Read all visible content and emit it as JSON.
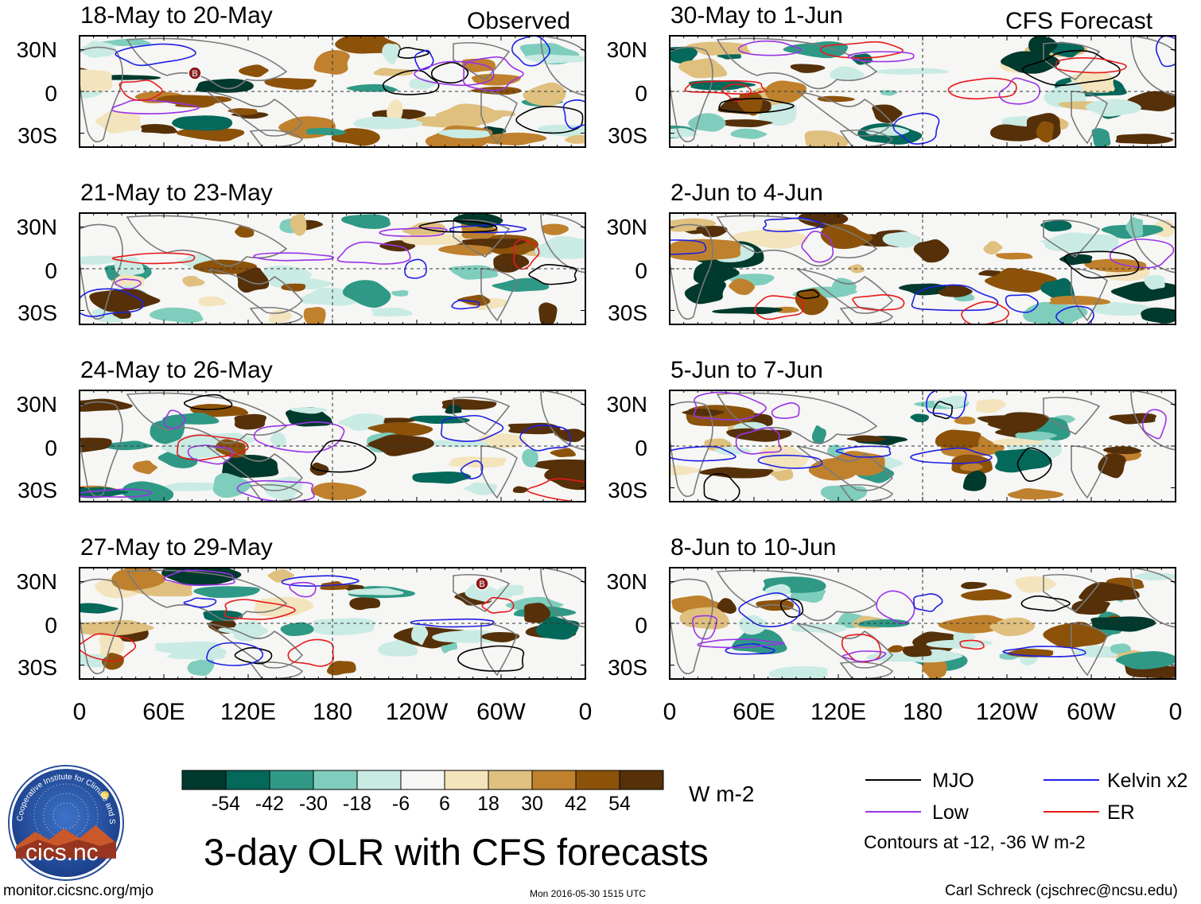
{
  "chart_data": {
    "type": "heatmap",
    "title": "3-day OLR with CFS forecasts",
    "units": "W m-2",
    "column_labels": [
      "Observed",
      "CFS Forecast"
    ],
    "panels": {
      "observed": [
        {
          "title": "18-May to 20-May"
        },
        {
          "title": "21-May to 23-May"
        },
        {
          "title": "24-May to 26-May"
        },
        {
          "title": "27-May to 29-May"
        }
      ],
      "forecast": [
        {
          "title": "30-May to 1-Jun"
        },
        {
          "title": "2-Jun to 4-Jun"
        },
        {
          "title": "5-Jun to 7-Jun"
        },
        {
          "title": "8-Jun to 10-Jun"
        }
      ]
    },
    "y_ticks": [
      "30N",
      "0",
      "30S"
    ],
    "x_ticks": [
      "0",
      "60E",
      "120E",
      "180",
      "120W",
      "60W",
      "0"
    ],
    "colorbar": {
      "ticks": [
        "-54",
        "-42",
        "-30",
        "-18",
        "-6",
        "6",
        "18",
        "30",
        "42",
        "54"
      ],
      "colors": [
        "#00392d",
        "#04685a",
        "#2f9986",
        "#7fcdbd",
        "#c9ebe4",
        "#f6f6f4",
        "#f3e4bd",
        "#dfc07f",
        "#bf812d",
        "#8c520a",
        "#553009"
      ]
    },
    "legend": [
      {
        "label": "MJO",
        "color": "#000000"
      },
      {
        "label": "Kelvin x2",
        "color": "#1f1fe6"
      },
      {
        "label": "Low",
        "color": "#9a32e6"
      },
      {
        "label": "ER",
        "color": "#e61a1a"
      }
    ],
    "contour_note": "Contours at -12, -36 W m-2",
    "storm_markers": [
      {
        "panel": "18-May to 20-May",
        "label": "B"
      },
      {
        "panel": "27-May to 29-May",
        "label": "B"
      }
    ]
  },
  "footer": {
    "url": "monitor.cicsnc.org/mjo",
    "timestamp": "Mon 2016-05-30 1515 UTC",
    "credit": "Carl Schreck (cjschrec@ncsu.edu)"
  },
  "logo": {
    "text": "cics.nc",
    "ring_text": "Cooperative Institute for Climate and Satellites"
  }
}
